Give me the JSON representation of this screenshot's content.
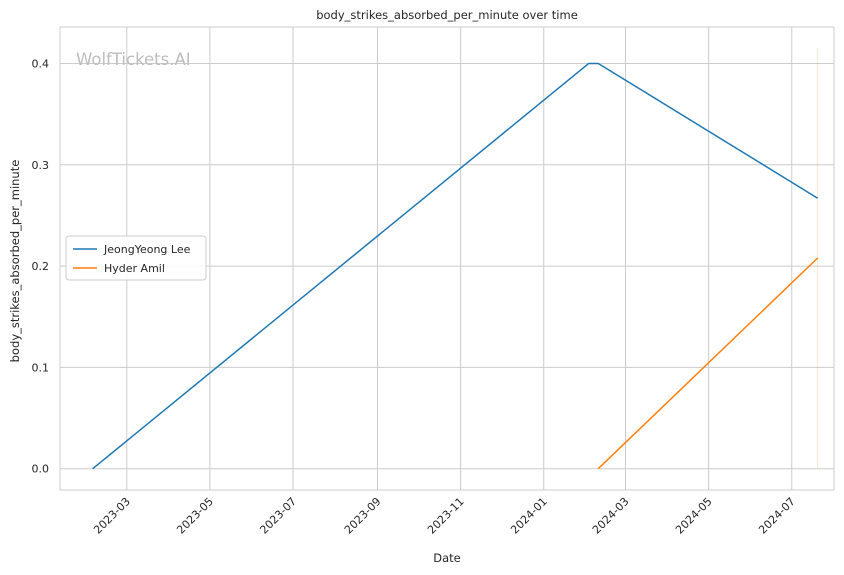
{
  "chart_data": {
    "type": "line",
    "title": "body_strikes_absorbed_per_minute over time",
    "xlabel": "Date",
    "ylabel": "body_strikes_absorbed_per_minute",
    "x_ticks": [
      "2023-03",
      "2023-05",
      "2023-07",
      "2023-09",
      "2023-11",
      "2024-01",
      "2024-03",
      "2024-05",
      "2024-07"
    ],
    "y_ticks": [
      "0.0",
      "0.1",
      "0.2",
      "0.3",
      "0.4"
    ],
    "ylim": [
      -0.021,
      0.436
    ],
    "xlim": [
      "2023-01-11",
      "2024-08-01"
    ],
    "grid": true,
    "legend_position": "center-left",
    "watermark": "WolfTickets.AI",
    "series": [
      {
        "name": "JeongYeong Lee",
        "color": "#1f77b4",
        "points": [
          {
            "x": "2023-02-04",
            "y": 0.0
          },
          {
            "x": "2024-02-03",
            "y": 0.4
          },
          {
            "x": "2024-02-10",
            "y": 0.4
          },
          {
            "x": "2024-07-20",
            "y": 0.267
          }
        ]
      },
      {
        "name": "Hyder Amil",
        "color": "#ff7f0e",
        "points": [
          {
            "x": "2024-02-10",
            "y": 0.0
          },
          {
            "x": "2024-07-20",
            "y": 0.208
          }
        ]
      }
    ],
    "vertical_marker": {
      "x": "2024-07-20",
      "y_range": [
        0.0,
        0.415
      ],
      "color": "#ff7f0e"
    }
  }
}
